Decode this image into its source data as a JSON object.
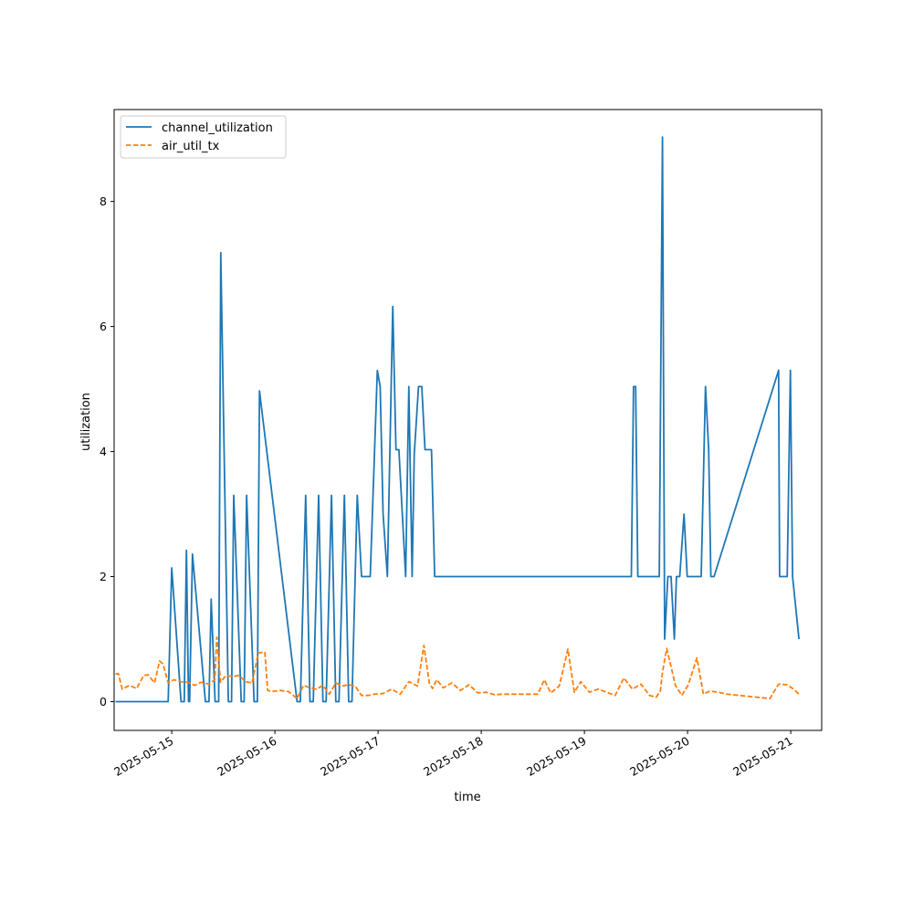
{
  "chart_data": {
    "type": "line",
    "title": "",
    "xlabel": "time",
    "ylabel": "utilization",
    "xlim": [
      "2025-05-14T10:36",
      "2025-05-21T07:12"
    ],
    "ylim": [
      -0.46,
      9.47
    ],
    "xticks": [
      "2025-05-15",
      "2025-05-16",
      "2025-05-17",
      "2025-05-18",
      "2025-05-19",
      "2025-05-20",
      "2025-05-21"
    ],
    "yticks": [
      0,
      2,
      4,
      6,
      8
    ],
    "grid": false,
    "legend": "top-left",
    "series": [
      {
        "name": "channel_utilization",
        "color": "#1f77b4",
        "style": "solid",
        "x": [
          "2025-05-14T10:55",
          "2025-05-14T22:10",
          "2025-05-14T22:50",
          "2025-05-14T23:10",
          "2025-05-15T00:00",
          "2025-05-15T02:10",
          "2025-05-15T02:55",
          "2025-05-15T03:25",
          "2025-05-15T03:55",
          "2025-05-15T04:10",
          "2025-05-15T04:50",
          "2025-05-15T07:50",
          "2025-05-15T08:40",
          "2025-05-15T09:10",
          "2025-05-15T10:05",
          "2025-05-15T10:55",
          "2025-05-15T11:25",
          "2025-05-15T13:10",
          "2025-05-15T13:55",
          "2025-05-15T14:25",
          "2025-05-15T16:10",
          "2025-05-15T16:50",
          "2025-05-15T17:25",
          "2025-05-15T19:10",
          "2025-05-15T19:55",
          "2025-05-15T20:25",
          "2025-05-16T05:10",
          "2025-05-16T05:55",
          "2025-05-16T07:10",
          "2025-05-16T08:10",
          "2025-05-16T08:55",
          "2025-05-16T10:10",
          "2025-05-16T11:10",
          "2025-05-16T11:55",
          "2025-05-16T13:10",
          "2025-05-16T14:10",
          "2025-05-16T14:55",
          "2025-05-16T16:10",
          "2025-05-16T17:10",
          "2025-05-16T17:55",
          "2025-05-16T19:10",
          "2025-05-16T20:10",
          "2025-05-16T20:45",
          "2025-05-16T21:10",
          "2025-05-16T22:10",
          "2025-05-16T23:50",
          "2025-05-17T00:30",
          "2025-05-17T01:10",
          "2025-05-17T02:10",
          "2025-05-17T03:25",
          "2025-05-17T04:10",
          "2025-05-17T04:50",
          "2025-05-17T06:25",
          "2025-05-17T07:10",
          "2025-05-17T07:55",
          "2025-05-17T08:25",
          "2025-05-17T09:25",
          "2025-05-17T10:10",
          "2025-05-17T10:55",
          "2025-05-17T11:25",
          "2025-05-17T12:25",
          "2025-05-17T13:10",
          "2025-05-17T14:10",
          "2025-05-17T15:05",
          "2025-05-19T10:55",
          "2025-05-19T11:25",
          "2025-05-19T11:55",
          "2025-05-19T12:25",
          "2025-05-19T17:25",
          "2025-05-19T18:10",
          "2025-05-19T18:40",
          "2025-05-19T19:25",
          "2025-05-19T20:10",
          "2025-05-19T20:55",
          "2025-05-19T21:25",
          "2025-05-19T22:10",
          "2025-05-19T23:10",
          "2025-05-19T23:55",
          "2025-05-20T00:25",
          "2025-05-20T03:10",
          "2025-05-20T04:10",
          "2025-05-20T04:55",
          "2025-05-20T05:25",
          "2025-05-20T06:10",
          "2025-05-20T21:10",
          "2025-05-20T21:25",
          "2025-05-20T23:10",
          "2025-05-20T23:55",
          "2025-05-21T00:25",
          "2025-05-21T01:55"
        ],
        "y": [
          0,
          0,
          0,
          0,
          2.14,
          0,
          0,
          2.42,
          0,
          0,
          2.36,
          0,
          0,
          1.64,
          0,
          0,
          7.18,
          0,
          0,
          3.3,
          0,
          0,
          3.3,
          0,
          0,
          4.97,
          0,
          0,
          3.3,
          0,
          0,
          3.3,
          0,
          0,
          3.3,
          0,
          0,
          3.3,
          0,
          0,
          3.3,
          2.0,
          2.0,
          2.0,
          2.0,
          5.3,
          5.04,
          3.0,
          2.0,
          6.32,
          4.03,
          4.03,
          2.0,
          5.04,
          2.0,
          3.95,
          5.04,
          5.04,
          4.03,
          4.03,
          4.03,
          2.0,
          2.0,
          2.0,
          2.0,
          5.04,
          5.04,
          2.0,
          2.0,
          9.03,
          1.0,
          2.0,
          2.0,
          1.0,
          2.0,
          2.0,
          3.0,
          2.0,
          2.0,
          2.0,
          5.04,
          4.03,
          2.0,
          2.0,
          5.3,
          2.0,
          2.0,
          5.3,
          2.0,
          1.0
        ]
      },
      {
        "name": "air_util_tx",
        "color": "#ff7f0e",
        "style": "dashed",
        "x": [
          "2025-05-14T10:55",
          "2025-05-14T11:35",
          "2025-05-14T12:30",
          "2025-05-14T14:10",
          "2025-05-14T15:50",
          "2025-05-14T17:30",
          "2025-05-14T18:30",
          "2025-05-14T20:00",
          "2025-05-14T21:10",
          "2025-05-14T22:00",
          "2025-05-14T23:10",
          "2025-05-15T00:30",
          "2025-05-15T02:10",
          "2025-05-15T03:50",
          "2025-05-15T05:20",
          "2025-05-15T06:50",
          "2025-05-15T08:40",
          "2025-05-15T10:00",
          "2025-05-15T10:30",
          "2025-05-15T11:20",
          "2025-05-15T12:40",
          "2025-05-15T14:10",
          "2025-05-15T15:40",
          "2025-05-15T17:10",
          "2025-05-15T18:40",
          "2025-05-15T20:10",
          "2025-05-15T21:40",
          "2025-05-15T22:20",
          "2025-05-15T23:10",
          "2025-05-16T01:10",
          "2025-05-16T03:10",
          "2025-05-16T05:10",
          "2025-05-16T06:40",
          "2025-05-16T08:10",
          "2025-05-16T09:40",
          "2025-05-16T11:10",
          "2025-05-16T12:40",
          "2025-05-16T14:10",
          "2025-05-16T15:40",
          "2025-05-16T17:10",
          "2025-05-16T18:40",
          "2025-05-16T20:10",
          "2025-05-16T21:40",
          "2025-05-16T23:10",
          "2025-05-17T01:10",
          "2025-05-17T03:10",
          "2025-05-17T05:10",
          "2025-05-17T07:10",
          "2025-05-17T09:10",
          "2025-05-17T10:40",
          "2025-05-17T11:55",
          "2025-05-17T12:40",
          "2025-05-17T13:40",
          "2025-05-17T15:10",
          "2025-05-17T17:10",
          "2025-05-17T19:10",
          "2025-05-17T21:10",
          "2025-05-17T23:10",
          "2025-05-18T01:10",
          "2025-05-18T03:10",
          "2025-05-18T05:10",
          "2025-05-18T07:10",
          "2025-05-18T09:10",
          "2025-05-18T11:10",
          "2025-05-18T13:10",
          "2025-05-18T14:40",
          "2025-05-18T16:10",
          "2025-05-18T18:10",
          "2025-05-18T20:10",
          "2025-05-18T21:40",
          "2025-05-18T23:10",
          "2025-05-19T01:10",
          "2025-05-19T03:10",
          "2025-05-19T05:10",
          "2025-05-19T07:10",
          "2025-05-19T09:10",
          "2025-05-19T11:10",
          "2025-05-19T13:10",
          "2025-05-19T15:10",
          "2025-05-19T16:40",
          "2025-05-19T17:40",
          "2025-05-19T18:10",
          "2025-05-19T19:10",
          "2025-05-19T21:10",
          "2025-05-19T22:40",
          "2025-05-20T00:10",
          "2025-05-20T02:10",
          "2025-05-20T03:40",
          "2025-05-20T05:10",
          "2025-05-20T07:10",
          "2025-05-20T09:10",
          "2025-05-20T19:10",
          "2025-05-20T21:10",
          "2025-05-20T23:10",
          "2025-05-21T00:40",
          "2025-05-21T01:55"
        ],
        "y": [
          0.44,
          0.45,
          0.2,
          0.26,
          0.21,
          0.42,
          0.43,
          0.3,
          0.65,
          0.6,
          0.3,
          0.35,
          0.32,
          0.31,
          0.26,
          0.31,
          0.28,
          0.35,
          1.03,
          0.31,
          0.42,
          0.4,
          0.42,
          0.32,
          0.3,
          0.78,
          0.79,
          0.18,
          0.16,
          0.18,
          0.16,
          0.05,
          0.26,
          0.22,
          0.2,
          0.26,
          0.12,
          0.3,
          0.25,
          0.27,
          0.25,
          0.1,
          0.1,
          0.12,
          0.13,
          0.2,
          0.12,
          0.32,
          0.25,
          0.9,
          0.3,
          0.21,
          0.35,
          0.22,
          0.3,
          0.18,
          0.27,
          0.14,
          0.15,
          0.11,
          0.12,
          0.12,
          0.12,
          0.12,
          0.12,
          0.35,
          0.14,
          0.25,
          0.84,
          0.15,
          0.32,
          0.15,
          0.2,
          0.15,
          0.1,
          0.38,
          0.2,
          0.28,
          0.1,
          0.07,
          0.17,
          0.47,
          0.85,
          0.26,
          0.1,
          0.27,
          0.7,
          0.12,
          0.17,
          0.15,
          0.12,
          0.05,
          0.28,
          0.27,
          0.2,
          0.12
        ]
      }
    ]
  }
}
